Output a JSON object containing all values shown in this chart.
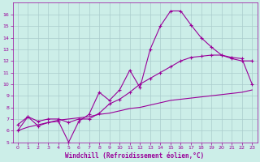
{
  "background_color": "#cceee8",
  "grid_color": "#aacccc",
  "line_color": "#990099",
  "xlabel": "Windchill (Refroidissement éolien,°C)",
  "xlim": [
    -0.5,
    23.5
  ],
  "ylim": [
    5,
    17
  ],
  "xticks": [
    0,
    1,
    2,
    3,
    4,
    5,
    6,
    7,
    8,
    9,
    10,
    11,
    12,
    13,
    14,
    15,
    16,
    17,
    18,
    19,
    20,
    21,
    22,
    23
  ],
  "yticks": [
    5,
    6,
    7,
    8,
    9,
    10,
    11,
    12,
    13,
    14,
    15,
    16
  ],
  "series1_x": [
    0,
    1,
    2,
    3,
    4,
    5,
    6,
    7,
    8,
    9,
    10,
    11,
    12,
    13,
    14,
    15,
    16,
    17,
    18,
    19,
    20,
    21,
    22,
    23
  ],
  "series1_y": [
    6.0,
    7.2,
    6.4,
    6.7,
    6.8,
    5.0,
    6.8,
    7.4,
    9.3,
    8.6,
    9.5,
    11.2,
    9.7,
    13.0,
    15.0,
    16.3,
    16.3,
    15.1,
    14.0,
    13.2,
    12.5,
    12.2,
    12.0,
    12.0
  ],
  "series2_x": [
    0,
    1,
    2,
    3,
    4,
    5,
    6,
    7,
    8,
    9,
    10,
    11,
    12,
    13,
    14,
    15,
    16,
    17,
    18,
    19,
    20,
    21,
    22,
    23
  ],
  "series2_y": [
    6.5,
    7.2,
    6.8,
    7.0,
    7.0,
    6.7,
    7.0,
    7.0,
    7.5,
    8.3,
    8.7,
    9.3,
    10.0,
    10.5,
    11.0,
    11.5,
    12.0,
    12.3,
    12.4,
    12.5,
    12.5,
    12.3,
    12.2,
    10.0
  ],
  "series3_x": [
    0,
    1,
    2,
    3,
    4,
    5,
    6,
    7,
    8,
    9,
    10,
    11,
    12,
    13,
    14,
    15,
    16,
    17,
    18,
    19,
    20,
    21,
    22,
    23
  ],
  "series3_y": [
    6.0,
    6.3,
    6.5,
    6.7,
    6.9,
    7.0,
    7.1,
    7.2,
    7.4,
    7.5,
    7.7,
    7.9,
    8.0,
    8.2,
    8.4,
    8.6,
    8.7,
    8.8,
    8.9,
    9.0,
    9.1,
    9.2,
    9.3,
    9.5
  ]
}
